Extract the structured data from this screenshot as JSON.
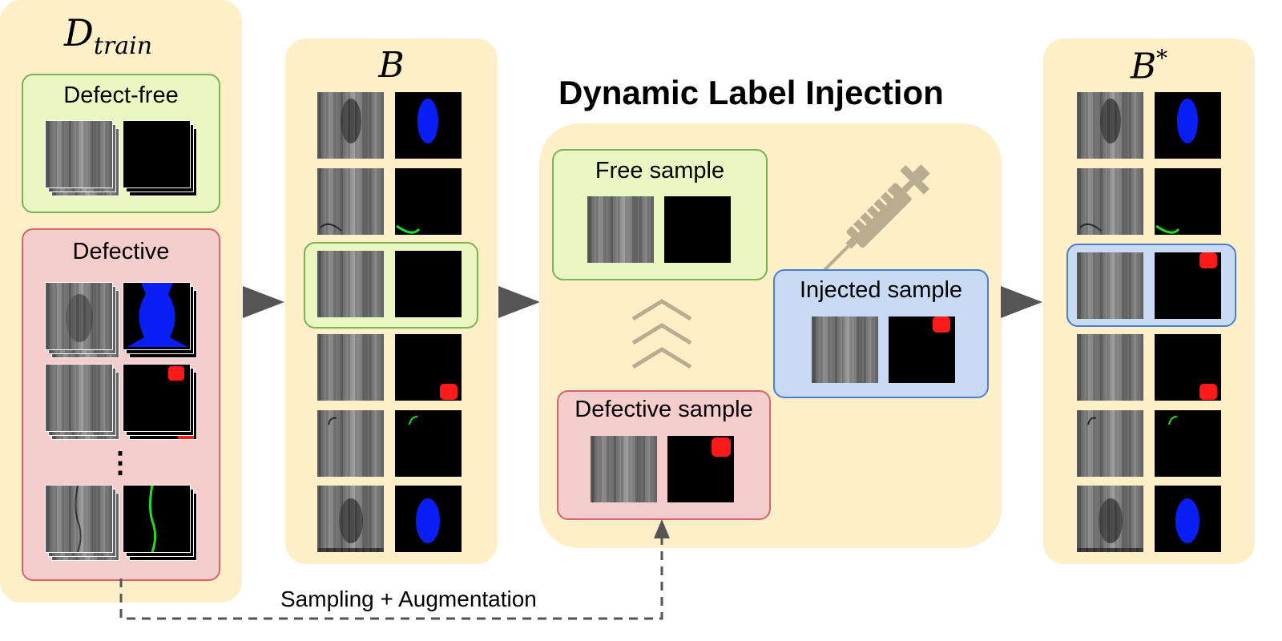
{
  "panels": {
    "train": {
      "title_main": "D",
      "title_sub": "train"
    },
    "batch": {
      "title": "B"
    },
    "batch_star": {
      "title": "B",
      "title_sup": "*"
    }
  },
  "train_groups": {
    "defect_free": "Defect-free",
    "defective": "Defective",
    "ellipsis": "⋮"
  },
  "dli": {
    "title": "Dynamic Label Injection",
    "free_sample": "Free sample",
    "defective_sample": "Defective sample",
    "injected_sample": "Injected sample"
  },
  "sampling_label": "Sampling + Augmentation",
  "colors": {
    "panel": "#fdf0c9",
    "green_box": "#ecf6c3",
    "red_box": "#f5cdcd",
    "blue_box": "#c9daf5",
    "mask_blue": "#0a1ff5",
    "mask_red": "#ff1a1a",
    "mask_green": "#22dd22",
    "syringe": "#b8ae8f"
  },
  "icons": [
    "syringe-icon",
    "chevron-up-icon",
    "arrow-right-icon"
  ]
}
